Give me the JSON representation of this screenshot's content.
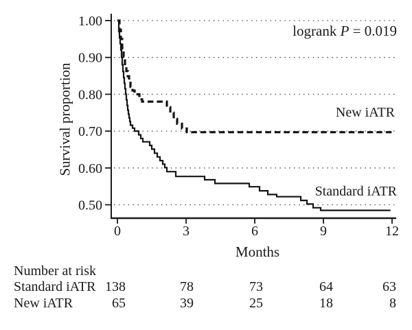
{
  "chart_data": {
    "type": "line",
    "subtype": "kaplan-meier-step-curves",
    "title": "",
    "xlabel": "Months",
    "ylabel": "Survival proportion",
    "xlim": [
      0,
      12
    ],
    "ylim": [
      0.47,
      1.0
    ],
    "grid": "dotted-horizontal",
    "annotation": {
      "prefix": "logrank ",
      "p": "P",
      "suffix": " = 0.019"
    },
    "x_ticks": [
      {
        "label": "0",
        "value": 0
      },
      {
        "label": "3",
        "value": 3
      },
      {
        "label": "6",
        "value": 6
      },
      {
        "label": "9",
        "value": 9
      },
      {
        "label": "12",
        "value": 12
      }
    ],
    "y_ticks": [
      {
        "label": "1.00",
        "value": 1.0
      },
      {
        "label": "0.90",
        "value": 0.9
      },
      {
        "label": "0.80",
        "value": 0.8
      },
      {
        "label": "0.70",
        "value": 0.7
      },
      {
        "label": "0.60",
        "value": 0.6
      },
      {
        "label": "0.50",
        "value": 0.5
      }
    ],
    "series": [
      {
        "name": "Standard iATR",
        "line_style": "solid",
        "color": "#141414",
        "steps": [
          [
            0,
            1.0
          ],
          [
            0.06,
            0.97
          ],
          [
            0.09,
            0.953
          ],
          [
            0.12,
            0.937
          ],
          [
            0.15,
            0.92
          ],
          [
            0.18,
            0.9
          ],
          [
            0.21,
            0.88
          ],
          [
            0.24,
            0.862
          ],
          [
            0.27,
            0.845
          ],
          [
            0.3,
            0.83
          ],
          [
            0.33,
            0.815
          ],
          [
            0.36,
            0.8
          ],
          [
            0.39,
            0.785
          ],
          [
            0.42,
            0.77
          ],
          [
            0.45,
            0.757
          ],
          [
            0.48,
            0.746
          ],
          [
            0.51,
            0.736
          ],
          [
            0.54,
            0.726
          ],
          [
            0.57,
            0.716
          ],
          [
            0.66,
            0.708
          ],
          [
            0.75,
            0.7
          ],
          [
            0.93,
            0.69
          ],
          [
            1.02,
            0.68
          ],
          [
            1.11,
            0.671
          ],
          [
            1.41,
            0.661
          ],
          [
            1.5,
            0.651
          ],
          [
            1.62,
            0.64
          ],
          [
            1.74,
            0.63
          ],
          [
            1.86,
            0.62
          ],
          [
            1.98,
            0.61
          ],
          [
            2.07,
            0.601
          ],
          [
            2.16,
            0.59
          ],
          [
            2.55,
            0.577
          ],
          [
            3.81,
            0.568
          ],
          [
            4.26,
            0.558
          ],
          [
            5.76,
            0.549
          ],
          [
            6.21,
            0.538
          ],
          [
            6.57,
            0.528
          ],
          [
            6.96,
            0.522
          ],
          [
            8.01,
            0.512
          ],
          [
            8.28,
            0.502
          ],
          [
            8.55,
            0.492
          ],
          [
            8.88,
            0.485
          ],
          [
            11.93,
            0.485
          ]
        ]
      },
      {
        "name": "New iATR",
        "line_style": "dashed",
        "color": "#141414",
        "steps": [
          [
            0,
            1.0
          ],
          [
            0.09,
            0.975
          ],
          [
            0.15,
            0.95
          ],
          [
            0.21,
            0.925
          ],
          [
            0.27,
            0.902
          ],
          [
            0.33,
            0.882
          ],
          [
            0.39,
            0.863
          ],
          [
            0.45,
            0.849
          ],
          [
            0.51,
            0.835
          ],
          [
            0.57,
            0.82
          ],
          [
            0.66,
            0.81
          ],
          [
            0.75,
            0.8
          ],
          [
            0.96,
            0.786
          ],
          [
            1.08,
            0.78
          ],
          [
            2.16,
            0.765
          ],
          [
            2.31,
            0.75
          ],
          [
            2.46,
            0.733
          ],
          [
            2.61,
            0.72
          ],
          [
            2.82,
            0.707
          ],
          [
            3.03,
            0.697
          ],
          [
            12.1,
            0.697
          ]
        ]
      }
    ],
    "curve_labels": {
      "new": "New iATR",
      "standard": "Standard iATR"
    },
    "risk_table": {
      "title": "Number at risk",
      "columns": [
        "0",
        "3",
        "6",
        "9",
        "12"
      ],
      "rows": [
        {
          "label": "Standard iATR",
          "values": [
            "138",
            "78",
            "73",
            "64",
            "63"
          ]
        },
        {
          "label": "New iATR",
          "values": [
            "65",
            "39",
            "25",
            "18",
            "8"
          ]
        }
      ]
    },
    "colors": {
      "curve": "#141414",
      "grid_dot": "#2e2e2e",
      "axis": "#1a1a1a"
    }
  }
}
